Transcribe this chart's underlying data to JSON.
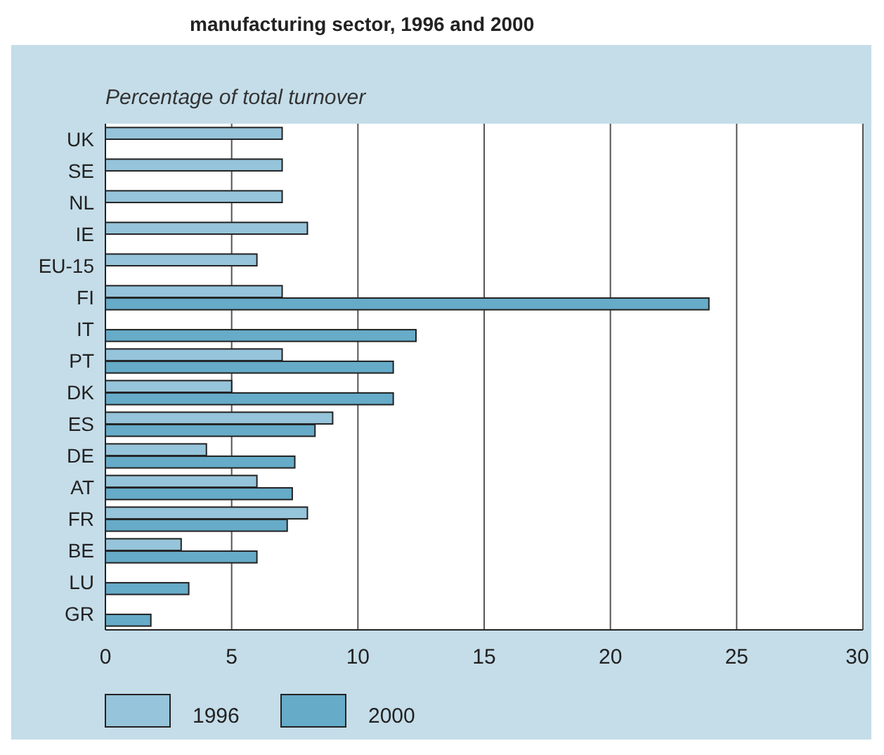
{
  "chart_data": {
    "type": "bar",
    "orientation": "horizontal",
    "title": "manufacturing sector, 1996 and 2000",
    "xlabel": "Percentage of total turnover",
    "categories": [
      "UK",
      "SE",
      "NL",
      "IE",
      "EU-15",
      "FI",
      "IT",
      "PT",
      "DK",
      "ES",
      "DE",
      "AT",
      "FR",
      "BE",
      "LU",
      "GR"
    ],
    "series": [
      {
        "name": "1996",
        "color": "#96c4da",
        "values": [
          7,
          7,
          7,
          8,
          6,
          7,
          null,
          7,
          5,
          9,
          4,
          6,
          8,
          3,
          null,
          null
        ]
      },
      {
        "name": "2000",
        "color": "#66abc8",
        "values": [
          null,
          null,
          null,
          null,
          null,
          23.9,
          12.3,
          11.4,
          11.4,
          8.3,
          7.5,
          7.4,
          7.2,
          6.0,
          3.3,
          1.8
        ]
      }
    ],
    "xlim": [
      0,
      30
    ],
    "xticks": [
      0,
      5,
      10,
      15,
      20,
      25,
      30
    ],
    "grid": "x",
    "legend": "bottom"
  }
}
